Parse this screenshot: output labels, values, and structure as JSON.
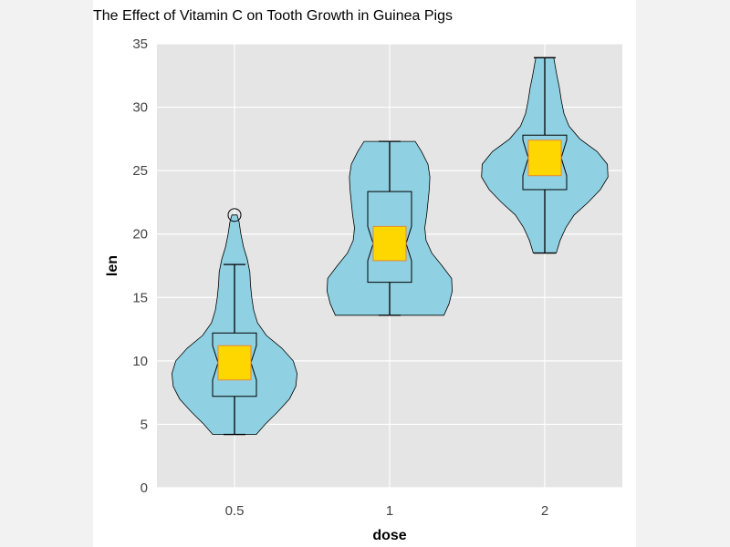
{
  "chart_data": {
    "type": "violin",
    "title": "The Effect of Vitamin C on Tooth Growth in Guinea Pigs",
    "xlabel": "dose",
    "ylabel": "len",
    "categories": [
      "0.5",
      "1",
      "2"
    ],
    "ylim": [
      0,
      35
    ],
    "yticks": [
      0,
      5,
      10,
      15,
      20,
      25,
      30,
      35
    ],
    "grid": true,
    "colors": {
      "panel": "#e5e5e5",
      "violin_fill": "#8fd1e2",
      "notch_fill": "#ffd700",
      "notch_stroke": "#e08a3a",
      "line": "#000000"
    },
    "violins": [
      {
        "category": "0.5",
        "min": 4.2,
        "q1": 7.2,
        "median": 9.85,
        "q3": 12.2,
        "whisker_high": 17.6,
        "max": 21.5,
        "notch_low": 8.5,
        "notch_high": 11.2,
        "outliers": [
          21.5
        ],
        "density": [
          [
            4.2,
            0.34
          ],
          [
            5,
            0.48
          ],
          [
            6,
            0.68
          ],
          [
            7,
            0.86
          ],
          [
            8,
            0.96
          ],
          [
            9,
            0.98
          ],
          [
            10,
            0.92
          ],
          [
            11,
            0.74
          ],
          [
            12,
            0.5
          ],
          [
            13,
            0.36
          ],
          [
            14,
            0.3
          ],
          [
            15,
            0.27
          ],
          [
            16,
            0.25
          ],
          [
            17,
            0.24
          ],
          [
            18,
            0.2
          ],
          [
            19,
            0.14
          ],
          [
            20,
            0.1
          ],
          [
            21,
            0.07
          ],
          [
            21.5,
            0.04
          ]
        ]
      },
      {
        "category": "1",
        "min": 13.6,
        "q1": 16.2,
        "median": 19.25,
        "q3": 23.35,
        "whisker_high": 27.3,
        "max": 27.3,
        "notch_low": 17.9,
        "notch_high": 20.6,
        "outliers": [],
        "density": [
          [
            13.6,
            0.85
          ],
          [
            14.5,
            0.93
          ],
          [
            15.5,
            0.98
          ],
          [
            16.5,
            0.97
          ],
          [
            17.5,
            0.82
          ],
          [
            18.5,
            0.66
          ],
          [
            19.5,
            0.57
          ],
          [
            20.5,
            0.55
          ],
          [
            21.5,
            0.58
          ],
          [
            22.5,
            0.6
          ],
          [
            23.5,
            0.62
          ],
          [
            24.5,
            0.63
          ],
          [
            25.5,
            0.6
          ],
          [
            26.5,
            0.5
          ],
          [
            27.3,
            0.4
          ]
        ]
      },
      {
        "category": "2",
        "min": 18.5,
        "q1": 23.5,
        "median": 26.0,
        "q3": 27.8,
        "whisker_high": 33.9,
        "max": 33.9,
        "notch_low": 24.6,
        "notch_high": 27.4,
        "outliers": [],
        "density": [
          [
            18.5,
            0.18
          ],
          [
            19.5,
            0.24
          ],
          [
            20.5,
            0.33
          ],
          [
            21.5,
            0.46
          ],
          [
            22.5,
            0.68
          ],
          [
            23.5,
            0.87
          ],
          [
            24.5,
            0.99
          ],
          [
            25.5,
            0.98
          ],
          [
            26.5,
            0.82
          ],
          [
            27.5,
            0.55
          ],
          [
            28.5,
            0.38
          ],
          [
            29.5,
            0.3
          ],
          [
            30.5,
            0.26
          ],
          [
            31.5,
            0.23
          ],
          [
            32.5,
            0.19
          ],
          [
            33.9,
            0.14
          ]
        ]
      }
    ]
  }
}
